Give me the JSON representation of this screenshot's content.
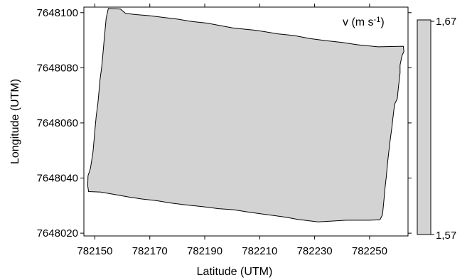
{
  "chart_data": {
    "type": "heatmap",
    "variable_label": "v (m s",
    "variable_superscript": "-1",
    "variable_label_close": ")",
    "xlabel": "Latitude (UTM)",
    "ylabel": "Longitude (UTM)",
    "xlim": [
      782146,
      782264
    ],
    "ylim": [
      7648019,
      7648102
    ],
    "x_ticks": [
      782150,
      782170,
      782190,
      782210,
      782230,
      782250
    ],
    "y_ticks": [
      7648020,
      7648040,
      7648060,
      7648080,
      7648100
    ],
    "x_tick_labels": [
      "782150",
      "782170",
      "782190",
      "782210",
      "782230",
      "782250"
    ],
    "y_tick_labels": [
      "7648020",
      "7648040",
      "7648060",
      "7648080",
      "7648100"
    ],
    "colorbar": {
      "min": 1.57,
      "max": 1.67,
      "min_label": "1,57",
      "max_label": "1,67",
      "color": "#d3d3d3"
    },
    "fill_color": "#d3d3d3",
    "field_value": 1.67,
    "boundary": [
      [
        782154.9,
        7648101.5
      ],
      [
        782159.3,
        7648101.3
      ],
      [
        782161.2,
        7648099.7
      ],
      [
        782164.9,
        7648099.3
      ],
      [
        782169.7,
        7648098.9
      ],
      [
        782174.7,
        7648098.3
      ],
      [
        782179.8,
        7648097.7
      ],
      [
        782185.3,
        7648096.8
      ],
      [
        782190.8,
        7648096.2
      ],
      [
        782194.6,
        7648095.5
      ],
      [
        782200.5,
        7648094.4
      ],
      [
        782208.6,
        7648093.6
      ],
      [
        782216.6,
        7648092.3
      ],
      [
        782222.5,
        7648091.7
      ],
      [
        782228.3,
        7648090.6
      ],
      [
        782234.2,
        7648089.8
      ],
      [
        782240.1,
        7648089.2
      ],
      [
        782245.2,
        7648088.4
      ],
      [
        782253.1,
        7648087.6
      ],
      [
        782262.3,
        7648087.8
      ],
      [
        782262.5,
        7648085.9
      ],
      [
        782261.8,
        7648084.4
      ],
      [
        782261.1,
        7648081.0
      ],
      [
        782261.1,
        7648078.1
      ],
      [
        782260.5,
        7648073.0
      ],
      [
        782260.1,
        7648068.8
      ],
      [
        782259.1,
        7648066.8
      ],
      [
        782258.6,
        7648062.6
      ],
      [
        782258.1,
        7648058.2
      ],
      [
        782257.5,
        7648053.8
      ],
      [
        782257.0,
        7648049.4
      ],
      [
        782256.5,
        7648045.0
      ],
      [
        782256.1,
        7648040.6
      ],
      [
        782255.6,
        7648036.1
      ],
      [
        782255.2,
        7648031.7
      ],
      [
        782254.7,
        7648026.7
      ],
      [
        782253.8,
        7648024.9
      ],
      [
        782250.1,
        7648024.7
      ],
      [
        782241.6,
        7648024.7
      ],
      [
        782231.3,
        7648024.1
      ],
      [
        782223.9,
        7648025.0
      ],
      [
        782219.5,
        7648025.8
      ],
      [
        782215.1,
        7648026.4
      ],
      [
        782210.0,
        7648027.1
      ],
      [
        782205.6,
        7648027.7
      ],
      [
        782200.5,
        7648028.5
      ],
      [
        782195.0,
        7648028.9
      ],
      [
        782189.5,
        7648029.6
      ],
      [
        782183.6,
        7648030.2
      ],
      [
        782177.8,
        7648030.9
      ],
      [
        782172.3,
        7648031.8
      ],
      [
        782167.1,
        7648032.4
      ],
      [
        782162.4,
        7648033.1
      ],
      [
        782157.3,
        7648034.0
      ],
      [
        782152.1,
        7648034.9
      ],
      [
        782147.7,
        7648035.1
      ],
      [
        782147.4,
        7648037.2
      ],
      [
        782147.5,
        7648040.8
      ],
      [
        782148.4,
        7648043.6
      ],
      [
        782149.3,
        7648049.4
      ],
      [
        782149.7,
        7648053.8
      ],
      [
        782150.1,
        7648058.2
      ],
      [
        782150.5,
        7648062.6
      ],
      [
        782151.1,
        7648067.1
      ],
      [
        782151.5,
        7648071.5
      ],
      [
        782151.9,
        7648075.9
      ],
      [
        782152.5,
        7648080.3
      ],
      [
        782152.9,
        7648084.7
      ],
      [
        782153.3,
        7648089.2
      ],
      [
        782153.7,
        7648093.6
      ],
      [
        782154.1,
        7648097.9
      ],
      [
        782154.9,
        7648101.5
      ]
    ]
  }
}
